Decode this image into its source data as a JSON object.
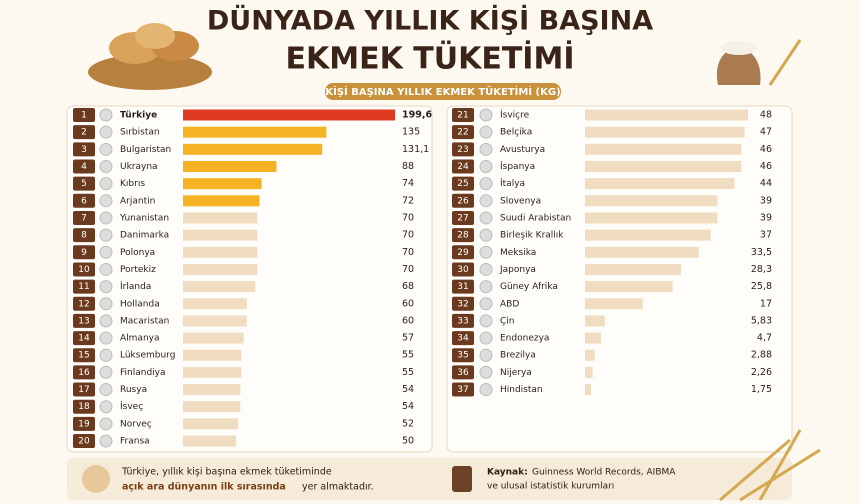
{
  "chart_data": {
    "type": "bar",
    "title_lines": [
      "DÜNYADA YILLIK KİŞİ BAŞINA",
      "EKMEK TÜKETİMİ"
    ],
    "subtitle": "KİŞİ BAŞINA YILLIK EKMEK TÜKETİMİ (KG)",
    "ranks": [
      1,
      2,
      3,
      4,
      5,
      6,
      7,
      8,
      9,
      10,
      11,
      12,
      13,
      14,
      15,
      16,
      17,
      18,
      19,
      20,
      21,
      22,
      23,
      24,
      25,
      26,
      27,
      28,
      29,
      30,
      31,
      32,
      33,
      34,
      35,
      36,
      37
    ],
    "categories": [
      "Türkiye",
      "Sırbistan",
      "Bulgaristan",
      "Ukrayna",
      "Kıbrıs",
      "Arjantin",
      "Yunanistan",
      "Danimarka",
      "Polonya",
      "Portekiz",
      "İrlanda",
      "Hollanda",
      "Macaristan",
      "Almanya",
      "Lüksemburg",
      "Finlandiya",
      "Rusya",
      "İsveç",
      "Norveç",
      "Fransa",
      "İsviçre",
      "Belçika",
      "Avusturya",
      "İspanya",
      "İtalya",
      "Slovenya",
      "Suudi Arabistan",
      "Birleşik Krallık",
      "Meksika",
      "Japonya",
      "Güney Afrika",
      "ABD",
      "Çin",
      "Endonezya",
      "Brezilya",
      "Nijerya",
      "Hindistan"
    ],
    "values": [
      199.6,
      135,
      131.1,
      88,
      74,
      72,
      70,
      70,
      70,
      70,
      68,
      60,
      60,
      57,
      55,
      55,
      54,
      54,
      52,
      50,
      48,
      47,
      46,
      46,
      44,
      39,
      39,
      37,
      33.5,
      28.3,
      25.8,
      17,
      5.83,
      4.7,
      2.88,
      2.26,
      1.75
    ],
    "value_labels": [
      "199,6",
      "135",
      "131,1",
      "88",
      "74",
      "72",
      "70",
      "70",
      "70",
      "70",
      "68",
      "60",
      "60",
      "57",
      "55",
      "55",
      "54",
      "54",
      "52",
      "50",
      "48",
      "47",
      "46",
      "46",
      "44",
      "39",
      "39",
      "37",
      "33,5",
      "28,3",
      "25,8",
      "17",
      "5,83",
      "4,7",
      "2,88",
      "2,26",
      "1,75"
    ],
    "colors": [
      "#e23a22",
      "#f5b324",
      "#f5b324",
      "#f5b324",
      "#f5b324",
      "#f5b324",
      "#f0dcc0",
      "#f0dcc0",
      "#f0dcc0",
      "#f0dcc0",
      "#f0dcc0",
      "#f0dcc0",
      "#f0dcc0",
      "#f0dcc0",
      "#f0dcc0",
      "#f0dcc0",
      "#f0dcc0",
      "#f0dcc0",
      "#f0dcc0",
      "#f0dcc0",
      "#f0dcc0",
      "#f0dcc0",
      "#f0dcc0",
      "#f0dcc0",
      "#f0dcc0",
      "#f0dcc0",
      "#f0dcc0",
      "#f0dcc0",
      "#f0dcc0",
      "#f0dcc0",
      "#f0dcc0",
      "#f0dcc0",
      "#f0dcc0",
      "#f0dcc0",
      "#f0dcc0",
      "#f0dcc0",
      "#f0dcc0"
    ],
    "rows_per_column": 20,
    "note": [
      "Türkiye, yıllık kişi başına ekmek tüketiminde",
      "açık ara dünyanın ilk sırasında",
      "yer almaktadır."
    ],
    "source": [
      "Kaynak:",
      "Guinness World Records, AIBMA",
      "ve ulusal istatistik kurumları"
    ]
  }
}
